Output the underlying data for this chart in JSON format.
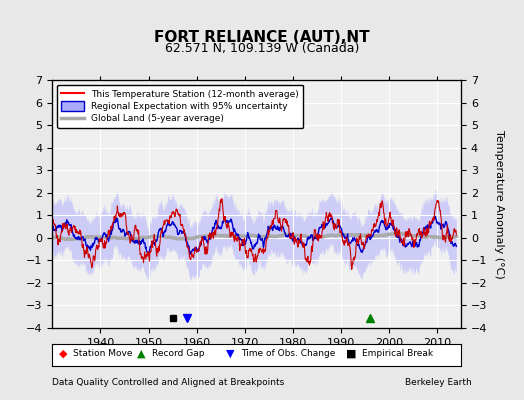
{
  "title": "FORT RELIANCE (AUT),NT",
  "subtitle": "62.571 N, 109.139 W (Canada)",
  "ylabel": "Temperature Anomaly (°C)",
  "footer_left": "Data Quality Controlled and Aligned at Breakpoints",
  "footer_right": "Berkeley Earth",
  "xlim": [
    1930,
    2015
  ],
  "ylim": [
    -4,
    7
  ],
  "yticks": [
    -4,
    -3,
    -2,
    -1,
    0,
    1,
    2,
    3,
    4,
    5,
    6,
    7
  ],
  "xticks": [
    1940,
    1950,
    1960,
    1970,
    1980,
    1990,
    2000,
    2010
  ],
  "bg_color": "#e8e8e8",
  "plot_bg_color": "#f0f0f0",
  "grid_color": "#ffffff",
  "station_move": [],
  "record_gap_x": [
    1996
  ],
  "record_gap_y": [
    -3.1
  ],
  "obs_change_x": [
    1958
  ],
  "obs_change_y": [
    -3.1
  ],
  "empirical_break_x": [
    1955
  ],
  "empirical_break_y": [
    -3.1
  ],
  "legend_items": [
    "This Temperature Station (12-month average)",
    "Regional Expectation with 95% uncertainty",
    "Global Land (5-year average)"
  ]
}
